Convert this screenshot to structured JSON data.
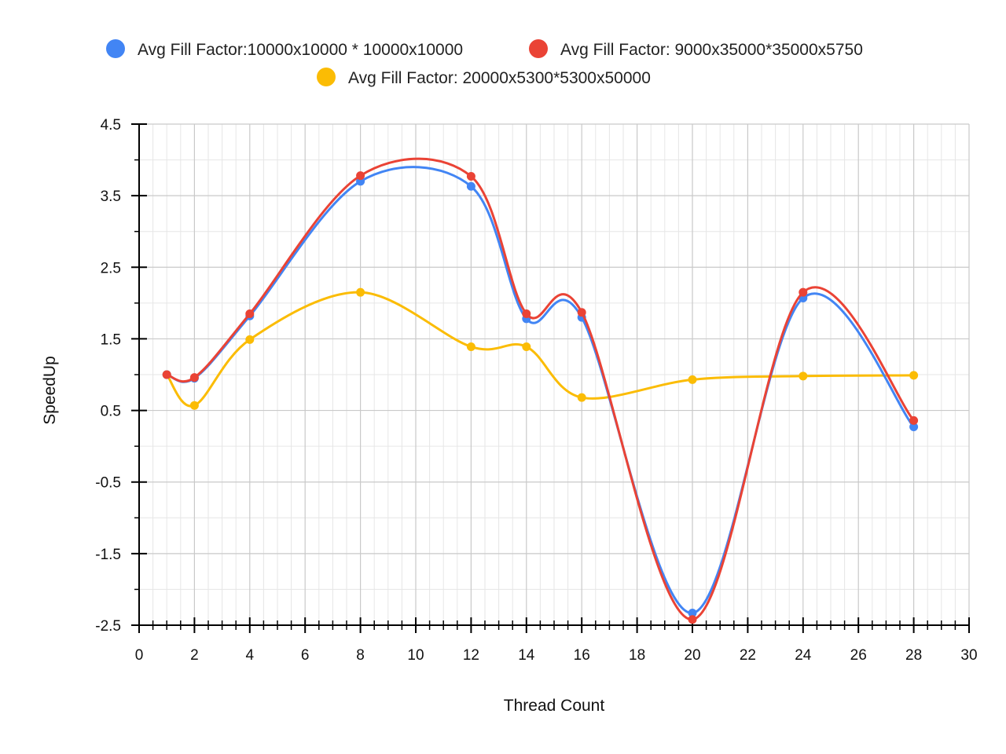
{
  "chart_data": {
    "type": "line",
    "x": [
      1,
      2,
      4,
      8,
      12,
      14,
      16,
      20,
      24,
      28
    ],
    "series": [
      {
        "name": "Avg Fill Factor:10000x10000 * 10000x10000",
        "color": "#4285F4",
        "values": [
          1.0,
          0.95,
          1.82,
          3.7,
          3.63,
          1.78,
          1.8,
          -2.33,
          2.07,
          0.27
        ]
      },
      {
        "name": "Avg Fill Factor: 9000x35000*35000x5750",
        "color": "#EA4335",
        "values": [
          1.0,
          0.96,
          1.85,
          3.78,
          3.77,
          1.85,
          1.87,
          -2.42,
          2.15,
          0.36
        ]
      },
      {
        "name": "Avg Fill Factor: 20000x5300*5300x50000",
        "color": "#FBBC04",
        "values": [
          1.0,
          0.57,
          1.49,
          2.15,
          1.39,
          1.39,
          0.68,
          0.93,
          0.98,
          0.99
        ]
      }
    ],
    "xlabel": "Thread Count",
    "ylabel": "SpeedUp",
    "xlim": [
      0,
      30
    ],
    "ylim": [
      -2.5,
      4.5
    ],
    "x_ticks": [
      "0",
      "2",
      "4",
      "6",
      "8",
      "10",
      "12",
      "14",
      "16",
      "18",
      "20",
      "22",
      "24",
      "26",
      "28",
      "30"
    ],
    "y_ticks": [
      "4.5",
      "3.5",
      "2.5",
      "1.5",
      "0.5",
      "-0.5",
      "-1.5",
      "-2.5"
    ],
    "grid": true,
    "legend_position": "top"
  }
}
